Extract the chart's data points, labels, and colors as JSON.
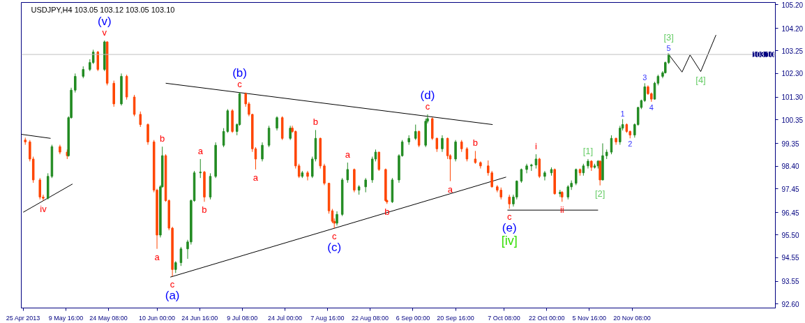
{
  "chart_data": {
    "type": "candlestick",
    "title": "USDJPY,H4  103.05 103.12 103.05 103.10",
    "x": [
      "2013-04-25T17:00",
      "2013-04-27T07:00",
      "2013-04-28T11:00",
      "2013-04-30T18:00",
      "2013-05-01T21:00",
      "2013-05-03T12:00",
      "2013-05-04T21:00",
      "2013-05-07T15:00",
      "2013-05-10T03:00",
      "2013-05-10T14:00",
      "2013-05-11T12:00",
      "2013-05-12T21:00",
      "2013-05-15T15:00",
      "2013-05-17T22:00",
      "2013-05-19T02:00",
      "2013-05-20T16:00",
      "2013-05-22T23:00",
      "2013-05-23T21:00",
      "2013-05-26T04:00",
      "2013-05-28T18:00",
      "2013-05-30T14:00",
      "2013-06-02T05:00",
      "2013-06-04T07:00",
      "2013-06-06T21:00",
      "2013-06-08T23:00",
      "2013-06-10T00:00",
      "2013-06-11T04:00",
      "2013-06-11T20:00",
      "2013-06-13T00:00",
      "2013-06-14T03:00",
      "2013-06-15T07:00",
      "2013-06-16T10:00",
      "2013-06-18T06:00",
      "2013-06-20T13:00",
      "2013-06-21T17:00",
      "2013-06-22T20:00",
      "2013-06-24T22:00",
      "2013-06-26T07:00",
      "2013-06-28T08:00",
      "2013-06-30T04:00",
      "2013-07-02T22:00",
      "2013-07-04T07:00",
      "2013-07-05T22:00",
      "2013-07-07T12:00",
      "2013-07-08T10:00",
      "2013-07-10T12:00",
      "2013-07-11T15:00",
      "2013-07-12T19:00",
      "2013-07-13T22:00",
      "2013-07-16T05:00",
      "2013-07-18T12:00",
      "2013-07-21T06:00",
      "2013-07-23T02:00",
      "2013-07-25T20:00",
      "2013-07-26T13:00",
      "2013-07-27T16:00",
      "2013-07-28T20:00",
      "2013-07-29T23:00",
      "2013-07-31T19:00",
      "2013-08-02T10:00",
      "2013-08-03T13:00",
      "2013-08-05T04:00",
      "2013-08-06T13:00",
      "2013-08-08T03:00",
      "2013-08-09T07:00",
      "2013-08-09T23:00",
      "2013-08-10T21:00",
      "2013-08-12T17:00",
      "2013-08-14T13:00",
      "2013-08-16T20:00",
      "2013-08-18T11:00",
      "2013-08-20T18:00",
      "2013-08-23T01:00",
      "2013-08-24T04:00",
      "2013-08-25T08:00",
      "2013-08-27T15:00",
      "2013-08-28T02:00",
      "2013-08-29T22:00",
      "2013-09-01T05:00",
      "2013-09-02T08:00",
      "2013-09-04T15:00",
      "2013-09-06T22:00",
      "2013-09-08T02:00",
      "2013-09-10T09:00",
      "2013-09-11T01:00",
      "2013-09-12T16:00",
      "2013-09-14T06:00",
      "2013-09-16T02:00",
      "2013-09-17T22:00",
      "2013-09-18T20:00",
      "2013-09-20T16:00",
      "2013-09-22T18:00",
      "2013-09-24T14:00",
      "2013-09-27T11:00",
      "2013-09-29T06:00",
      "2013-10-01T21:00",
      "2013-10-03T04:00",
      "2013-10-05T00:00",
      "2013-10-06T07:00",
      "2013-10-09T04:00",
      "2013-10-10T13:00",
      "2013-10-11T17:00",
      "2013-10-13T07:00",
      "2013-10-15T03:00",
      "2013-10-16T18:00",
      "2013-10-18T08:00",
      "2013-10-19T12:00",
      "2013-10-21T08:00",
      "2013-10-23T15:00",
      "2013-10-24T18:00",
      "2013-10-26T14:00",
      "2013-10-27T07:00",
      "2013-10-29T08:00",
      "2013-10-30T12:00",
      "2013-11-01T02:00",
      "2013-11-02T11:00",
      "2013-11-03T15:00",
      "2013-11-05T05:00",
      "2013-11-06T09:00",
      "2013-11-07T12:00",
      "2013-11-08T16:00",
      "2013-11-09T08:00",
      "2013-11-10T06:00",
      "2013-11-11T15:00",
      "2013-11-13T06:00",
      "2013-11-14T20:00",
      "2013-11-16T05:00",
      "2013-11-17T03:00",
      "2013-11-18T12:00",
      "2013-11-19T16:00",
      "2013-11-21T06:00",
      "2013-11-22T10:00",
      "2013-11-23T13:00",
      "2013-11-24T17:00",
      "2013-11-25T20:00",
      "2013-11-27T00:00",
      "2013-11-28T03:00",
      "2013-11-29T07:00",
      "2013-11-30T21:00",
      "2013-12-01T19:00",
      "2013-12-02T23:00"
    ],
    "ohlc": [
      [
        99.5,
        99.6,
        99.3,
        99.42
      ],
      [
        99.42,
        99.5,
        98.6,
        98.7
      ],
      [
        98.7,
        98.8,
        97.7,
        97.82
      ],
      [
        97.82,
        97.9,
        97.0,
        97.1
      ],
      [
        97.1,
        97.2,
        96.95,
        97.05
      ],
      [
        97.05,
        98.1,
        97.0,
        97.97
      ],
      [
        97.97,
        99.3,
        97.9,
        99.22
      ],
      [
        99.22,
        99.3,
        98.9,
        98.99
      ],
      [
        98.99,
        99.1,
        98.7,
        98.84
      ],
      [
        98.84,
        100.5,
        98.8,
        100.44
      ],
      [
        100.44,
        101.7,
        100.4,
        101.6
      ],
      [
        101.6,
        102.3,
        101.5,
        102.18
      ],
      [
        102.18,
        102.6,
        102.1,
        102.47
      ],
      [
        102.47,
        102.9,
        102.4,
        102.76
      ],
      [
        102.76,
        103.3,
        102.7,
        103.2
      ],
      [
        103.2,
        103.25,
        102.4,
        102.47
      ],
      [
        102.47,
        103.69,
        102.4,
        103.63
      ],
      [
        103.63,
        103.65,
        101.8,
        101.89
      ],
      [
        101.89,
        102.0,
        100.9,
        101.02
      ],
      [
        101.02,
        102.3,
        100.95,
        102.18
      ],
      [
        102.18,
        102.25,
        101.2,
        101.31
      ],
      [
        101.31,
        101.4,
        100.5,
        100.58
      ],
      [
        100.58,
        100.7,
        100.05,
        100.15
      ],
      [
        100.15,
        100.2,
        99.3,
        99.42
      ],
      [
        99.42,
        99.5,
        97.3,
        97.39
      ],
      [
        97.39,
        97.45,
        94.92,
        95.5
      ],
      [
        95.5,
        97.6,
        95.4,
        97.53
      ],
      [
        97.53,
        99.22,
        97.5,
        98.84
      ],
      [
        98.84,
        98.9,
        96.9,
        96.95
      ],
      [
        96.95,
        97.0,
        95.7,
        95.79
      ],
      [
        95.79,
        95.85,
        93.76,
        94.05
      ],
      [
        94.05,
        94.4,
        93.9,
        94.34
      ],
      [
        94.34,
        95.0,
        94.2,
        94.92
      ],
      [
        94.92,
        95.3,
        94.5,
        95.21
      ],
      [
        95.21,
        97.0,
        95.1,
        96.95
      ],
      [
        96.95,
        98.2,
        96.9,
        98.12
      ],
      [
        98.12,
        98.7,
        97.9,
        98.15
      ],
      [
        98.15,
        98.2,
        96.9,
        97.1
      ],
      [
        97.1,
        98.1,
        97.0,
        97.97
      ],
      [
        97.97,
        99.4,
        97.9,
        99.28
      ],
      [
        99.28,
        100.0,
        99.2,
        99.86
      ],
      [
        99.86,
        100.8,
        99.8,
        100.73
      ],
      [
        100.73,
        100.8,
        99.8,
        99.86
      ],
      [
        99.86,
        100.2,
        99.7,
        100.15
      ],
      [
        100.15,
        101.51,
        100.1,
        101.45
      ],
      [
        101.45,
        101.5,
        100.9,
        101.02
      ],
      [
        101.02,
        101.1,
        100.5,
        100.58
      ],
      [
        100.58,
        100.6,
        99.0,
        99.13
      ],
      [
        99.13,
        99.2,
        98.26,
        98.7
      ],
      [
        98.7,
        99.4,
        98.6,
        99.28
      ],
      [
        99.28,
        100.1,
        99.2,
        100.0
      ],
      [
        100.0,
        100.5,
        99.9,
        100.44
      ],
      [
        100.44,
        100.5,
        99.5,
        99.57
      ],
      [
        99.57,
        100.1,
        99.5,
        100.0
      ],
      [
        100.0,
        100.1,
        99.8,
        99.86
      ],
      [
        99.86,
        99.9,
        98.3,
        98.41
      ],
      [
        98.41,
        98.5,
        97.9,
        97.97
      ],
      [
        97.97,
        98.2,
        97.9,
        98.12
      ],
      [
        98.12,
        98.2,
        97.8,
        97.97
      ],
      [
        97.97,
        98.8,
        97.9,
        98.7
      ],
      [
        98.7,
        99.92,
        98.6,
        99.57
      ],
      [
        99.57,
        99.6,
        98.3,
        98.41
      ],
      [
        98.41,
        98.5,
        97.6,
        97.68
      ],
      [
        97.68,
        97.7,
        96.4,
        96.52
      ],
      [
        96.52,
        96.6,
        96.0,
        96.08
      ],
      [
        96.08,
        96.2,
        95.79,
        96.0
      ],
      [
        96.0,
        96.5,
        95.9,
        96.37
      ],
      [
        96.37,
        97.9,
        96.3,
        97.82
      ],
      [
        97.82,
        98.55,
        97.7,
        98.26
      ],
      [
        98.26,
        98.3,
        97.3,
        97.39
      ],
      [
        97.39,
        97.6,
        97.2,
        97.53
      ],
      [
        97.53,
        97.9,
        97.3,
        97.82
      ],
      [
        97.82,
        98.8,
        97.7,
        98.7
      ],
      [
        98.7,
        99.1,
        98.6,
        98.99
      ],
      [
        98.99,
        99.0,
        98.2,
        98.26
      ],
      [
        98.26,
        98.3,
        96.9,
        96.95
      ],
      [
        96.95,
        97.0,
        96.81,
        96.9
      ],
      [
        96.9,
        97.9,
        96.85,
        97.82
      ],
      [
        97.82,
        98.9,
        97.7,
        98.84
      ],
      [
        98.84,
        99.5,
        98.8,
        99.42
      ],
      [
        99.42,
        99.7,
        99.3,
        99.57
      ],
      [
        99.57,
        100.15,
        99.5,
        99.86
      ],
      [
        99.86,
        99.9,
        99.2,
        99.28
      ],
      [
        99.28,
        100.4,
        99.2,
        100.29
      ],
      [
        100.29,
        100.58,
        100.2,
        100.4
      ],
      [
        100.4,
        100.45,
        99.5,
        99.57
      ],
      [
        99.57,
        99.6,
        99.0,
        99.13
      ],
      [
        99.13,
        99.7,
        99.0,
        99.57
      ],
      [
        99.57,
        99.6,
        98.7,
        98.84
      ],
      [
        98.84,
        98.9,
        97.77,
        98.7
      ],
      [
        98.7,
        99.5,
        98.6,
        99.42
      ],
      [
        99.42,
        99.5,
        99.0,
        99.13
      ],
      [
        99.13,
        99.2,
        98.6,
        98.7
      ],
      [
        98.7,
        99.04,
        98.5,
        98.55
      ],
      [
        98.55,
        98.6,
        98.3,
        98.41
      ],
      [
        98.41,
        98.64,
        98.0,
        98.12
      ],
      [
        98.12,
        98.2,
        97.5,
        97.53
      ],
      [
        97.53,
        97.6,
        97.3,
        97.39
      ],
      [
        97.39,
        97.5,
        97.0,
        97.1
      ],
      [
        97.1,
        97.2,
        96.61,
        96.81
      ],
      [
        96.81,
        97.2,
        96.7,
        97.1
      ],
      [
        97.1,
        97.8,
        97.0,
        97.77
      ],
      [
        97.77,
        98.3,
        97.7,
        98.26
      ],
      [
        98.26,
        98.5,
        98.1,
        98.41
      ],
      [
        98.41,
        98.5,
        98.2,
        98.45
      ],
      [
        98.45,
        98.9,
        98.3,
        98.7
      ],
      [
        98.7,
        98.75,
        97.9,
        97.97
      ],
      [
        97.97,
        98.2,
        97.8,
        98.12
      ],
      [
        98.12,
        98.35,
        98.0,
        98.26
      ],
      [
        98.26,
        98.3,
        97.2,
        97.24
      ],
      [
        97.24,
        97.4,
        97.1,
        97.3
      ],
      [
        97.3,
        97.35,
        96.9,
        97.1
      ],
      [
        97.1,
        97.6,
        97.0,
        97.53
      ],
      [
        97.53,
        97.8,
        97.4,
        97.68
      ],
      [
        97.68,
        98.3,
        97.6,
        98.26
      ],
      [
        98.26,
        98.3,
        98.0,
        98.12
      ],
      [
        98.12,
        98.5,
        98.0,
        98.41
      ],
      [
        98.41,
        98.7,
        98.3,
        98.61
      ],
      [
        98.61,
        98.65,
        98.2,
        98.35
      ],
      [
        98.35,
        98.5,
        98.3,
        98.41
      ],
      [
        98.41,
        98.65,
        98.3,
        98.61
      ],
      [
        98.61,
        98.65,
        97.59,
        97.82
      ],
      [
        97.82,
        99.36,
        97.8,
        98.84
      ],
      [
        98.84,
        99.1,
        98.7,
        98.99
      ],
      [
        98.99,
        99.7,
        98.9,
        99.57
      ],
      [
        99.57,
        99.6,
        99.3,
        99.42
      ],
      [
        99.42,
        100.1,
        99.3,
        100.0
      ],
      [
        100.0,
        100.38,
        99.9,
        100.15
      ],
      [
        100.15,
        100.2,
        99.8,
        99.86
      ],
      [
        99.86,
        99.9,
        99.57,
        99.71
      ],
      [
        99.71,
        100.2,
        99.6,
        100.15
      ],
      [
        100.15,
        100.9,
        100.1,
        100.87
      ],
      [
        100.87,
        101.2,
        100.8,
        101.16
      ],
      [
        101.16,
        101.89,
        101.1,
        101.74
      ],
      [
        101.74,
        101.8,
        101.4,
        101.45
      ],
      [
        101.45,
        101.5,
        101.11,
        101.22
      ],
      [
        101.22,
        101.95,
        101.2,
        101.89
      ],
      [
        101.89,
        102.25,
        101.8,
        102.18
      ],
      [
        102.18,
        102.4,
        102.1,
        102.33
      ],
      [
        102.33,
        102.8,
        102.3,
        102.76
      ],
      [
        102.76,
        103.14,
        102.7,
        103.1
      ]
    ],
    "colors": [
      "#ff4500",
      "#ff4500",
      "#ff4500",
      "#ff4500",
      "#ff4500",
      "#228b22",
      "#228b22",
      "#ff4500",
      "#ff4500",
      "#228b22",
      "#228b22",
      "#228b22",
      "#228b22",
      "#228b22",
      "#228b22",
      "#ff4500",
      "#228b22",
      "#ff4500",
      "#ff4500",
      "#228b22",
      "#ff4500",
      "#ff4500",
      "#ff4500",
      "#ff4500",
      "#ff4500",
      "#ff4500",
      "#228b22",
      "#228b22",
      "#ff4500",
      "#ff4500",
      "#ff4500",
      "#228b22",
      "#228b22",
      "#228b22",
      "#228b22",
      "#228b22",
      "#228b22",
      "#ff4500",
      "#228b22",
      "#228b22",
      "#228b22",
      "#228b22",
      "#ff4500",
      "#228b22",
      "#228b22",
      "#ff4500",
      "#ff4500",
      "#ff4500",
      "#ff4500",
      "#228b22",
      "#228b22",
      "#228b22",
      "#ff4500",
      "#228b22",
      "#ff4500",
      "#ff4500",
      "#ff4500",
      "#228b22",
      "#ff4500",
      "#228b22",
      "#228b22",
      "#ff4500",
      "#ff4500",
      "#ff4500",
      "#ff4500",
      "#ff4500",
      "#228b22",
      "#228b22",
      "#228b22",
      "#ff4500",
      "#228b22",
      "#228b22",
      "#228b22",
      "#228b22",
      "#ff4500",
      "#ff4500",
      "#ff4500",
      "#228b22",
      "#228b22",
      "#228b22",
      "#228b22",
      "#228b22",
      "#ff4500",
      "#228b22",
      "#228b22",
      "#ff4500",
      "#ff4500",
      "#228b22",
      "#ff4500",
      "#ff4500",
      "#228b22",
      "#ff4500",
      "#ff4500",
      "#ff4500",
      "#ff4500",
      "#ff4500",
      "#ff4500",
      "#ff4500",
      "#ff4500",
      "#ff4500",
      "#228b22",
      "#228b22",
      "#228b22",
      "#228b22",
      "#228b22",
      "#228b22",
      "#ff4500",
      "#228b22",
      "#228b22",
      "#ff4500",
      "#228b22",
      "#ff4500",
      "#228b22",
      "#228b22",
      "#228b22",
      "#ff4500",
      "#228b22",
      "#228b22",
      "#ff4500",
      "#228b22",
      "#228b22",
      "#ff4500",
      "#228b22",
      "#228b22",
      "#228b22",
      "#ff4500",
      "#228b22",
      "#228b22",
      "#ff4500",
      "#ff4500",
      "#228b22",
      "#228b22",
      "#228b22",
      "#228b22",
      "#ff4500",
      "#ff4500",
      "#228b22",
      "#228b22",
      "#228b22",
      "#228b22",
      "#228b22"
    ],
    "series": [
      {
        "type": "line",
        "color": "#000000",
        "x": [
          "2013-04-24T08:00",
          "2013-05-04T10:00"
        ],
        "values": [
          99.74,
          99.57
        ]
      },
      {
        "type": "line",
        "color": "#000000",
        "x": [
          "2013-04-25T00:00",
          "2013-05-11T23:00"
        ],
        "values": [
          96.46,
          97.65
        ]
      },
      {
        "type": "line",
        "color": "#000000",
        "x": [
          "2013-06-13T00:00",
          "2013-10-03T10:00"
        ],
        "values": [
          101.89,
          100.15
        ]
      },
      {
        "type": "line",
        "color": "#000000",
        "x": [
          "2013-06-14T14:00",
          "2013-10-08T01:00"
        ],
        "values": [
          93.73,
          97.94
        ]
      },
      {
        "type": "line",
        "color": "#000000",
        "x": [
          "2013-10-08T12:00",
          "2013-11-08T16:00"
        ],
        "values": [
          96.55,
          96.55
        ]
      },
      {
        "type": "line",
        "color": "#000000",
        "x": [
          "2013-12-02T17:00",
          "2013-12-07T13:00",
          "2013-12-10T07:00",
          "2013-12-13T23:00",
          "2013-12-19T05:00"
        ],
        "values": [
          103.14,
          102.36,
          103.08,
          102.38,
          103.92
        ]
      }
    ],
    "ref_lines": [
      {
        "axis": "y",
        "value": 103.1,
        "label": "103.10",
        "color": "#c0c0c0"
      }
    ],
    "xlim": [
      "2013-04-24T08:00",
      "2014-01-08T15:00"
    ],
    "xticks": [
      {
        "value": "2013-04-25T00:00",
        "label": "25 Apr 2013"
      },
      {
        "value": "2013-05-09T16:00",
        "label": "9 May 16:00"
      },
      {
        "value": "2013-05-24T08:00",
        "label": "24 May 08:00"
      },
      {
        "value": "2013-06-10T00:00",
        "label": "10 Jun 00:00"
      },
      {
        "value": "2013-06-24T16:00",
        "label": "24 Jun 16:00"
      },
      {
        "value": "2013-07-09T08:00",
        "label": "9 Jul 08:00"
      },
      {
        "value": "2013-07-24T00:00",
        "label": "24 Jul 00:00"
      },
      {
        "value": "2013-08-07T16:00",
        "label": "7 Aug 16:00"
      },
      {
        "value": "2013-08-22T08:00",
        "label": "22 Aug 08:00"
      },
      {
        "value": "2013-09-06T00:00",
        "label": "6 Sep 00:00"
      },
      {
        "value": "2013-09-20T16:00",
        "label": "20 Sep 16:00"
      },
      {
        "value": "2013-10-07T08:00",
        "label": "7 Oct 08:00"
      },
      {
        "value": "2013-10-22T00:00",
        "label": "22 Oct 00:00"
      },
      {
        "value": "2013-11-05T16:00",
        "label": "5 Nov 16:00"
      },
      {
        "value": "2013-11-20T08:00",
        "label": "20 Nov 08:00"
      }
    ],
    "ylim": [
      92.43,
      105.29
    ],
    "yticks": [
      {
        "value": 92.6,
        "label": "92.60"
      },
      {
        "value": 93.55,
        "label": "93.55"
      },
      {
        "value": 94.55,
        "label": "94.55"
      },
      {
        "value": 95.5,
        "label": "95.50"
      },
      {
        "value": 96.45,
        "label": "96.45"
      },
      {
        "value": 97.45,
        "label": "97.45"
      },
      {
        "value": 98.4,
        "label": "98.40"
      },
      {
        "value": 99.35,
        "label": "99.35"
      },
      {
        "value": 100.35,
        "label": "100.35"
      },
      {
        "value": 101.3,
        "label": "101.30"
      },
      {
        "value": 102.3,
        "label": "102.30"
      },
      {
        "value": 103.25,
        "label": "103.25"
      },
      {
        "value": 104.2,
        "label": "104.20"
      },
      {
        "value": 105.2,
        "label": "105.20"
      }
    ],
    "annotations": [
      {
        "text": "v",
        "x": "2013-05-22T23:00",
        "y": 103.69
      },
      {
        "text": "iv",
        "x": "2013-05-01T21:00",
        "y": 96.95
      },
      {
        "text": "b",
        "x": "2013-06-11T20:00",
        "y": 99.22
      },
      {
        "text": "a",
        "x": "2013-06-10T00:00",
        "y": 94.92
      },
      {
        "text": "c",
        "x": "2013-06-15T07:00",
        "y": 93.76
      },
      {
        "text": "a",
        "x": "2013-06-24T22:00",
        "y": 98.7
      },
      {
        "text": "b",
        "x": "2013-06-26T07:00",
        "y": 96.9
      },
      {
        "text": "c",
        "x": "2013-07-08T10:00",
        "y": 101.51
      },
      {
        "text": "a",
        "x": "2013-07-13T22:00",
        "y": 98.26
      },
      {
        "text": "b",
        "x": "2013-08-03T13:00",
        "y": 99.92
      },
      {
        "text": "a",
        "x": "2013-08-14T13:00",
        "y": 98.55
      },
      {
        "text": "c",
        "x": "2013-08-09T23:00",
        "y": 95.79
      },
      {
        "text": "b",
        "x": "2013-08-28T02:00",
        "y": 96.81
      },
      {
        "text": "c",
        "x": "2013-09-11T01:00",
        "y": 100.58
      },
      {
        "text": "a",
        "x": "2013-09-18T20:00",
        "y": 97.77
      },
      {
        "text": "b",
        "x": "2013-09-27T11:00",
        "y": 99.04
      },
      {
        "text": "c",
        "x": "2013-10-09T04:00",
        "y": 96.61
      },
      {
        "text": "i",
        "x": "2013-10-18T08:00",
        "y": 98.9
      },
      {
        "text": "ii",
        "x": "2013-10-27T07:00",
        "y": 96.9
      },
      {
        "text": "(v)",
        "x": "2013-05-22T23:00",
        "y": 103.69
      },
      {
        "text": "(b)",
        "x": "2013-07-08T10:00",
        "y": 101.51
      },
      {
        "text": "(c)",
        "x": "2013-08-09T23:00",
        "y": 95.79
      },
      {
        "text": "(d)",
        "x": "2013-09-11T01:00",
        "y": 100.58
      },
      {
        "text": "(e)",
        "x": "2013-10-09T04:00",
        "y": 96.61
      },
      {
        "text": "(a)",
        "x": "2013-06-15T07:00",
        "y": 93.76
      },
      {
        "text": "1",
        "x": "2013-11-17T03:00",
        "y": 100.38
      },
      {
        "text": "2",
        "x": "2013-11-19T16:00",
        "y": 99.57
      },
      {
        "text": "3",
        "x": "2013-11-24T17:00",
        "y": 101.89
      },
      {
        "text": "4",
        "x": "2013-11-27T00:00",
        "y": 101.11
      },
      {
        "text": "5",
        "x": "2013-12-02T23:00",
        "y": 103.14
      },
      {
        "text": "[iv]",
        "x": "2013-10-09T04:00",
        "y": 96.61
      },
      {
        "text": "[1]",
        "x": "2013-11-05T05:00",
        "y": 98.7
      },
      {
        "text": "[2]",
        "x": "2013-11-09T08:00",
        "y": 97.59
      },
      {
        "text": "[3]",
        "x": "2013-12-02T23:00",
        "y": 103.14
      },
      {
        "text": "[4]",
        "x": "2013-12-13T23:00",
        "y": 102.38
      }
    ]
  }
}
